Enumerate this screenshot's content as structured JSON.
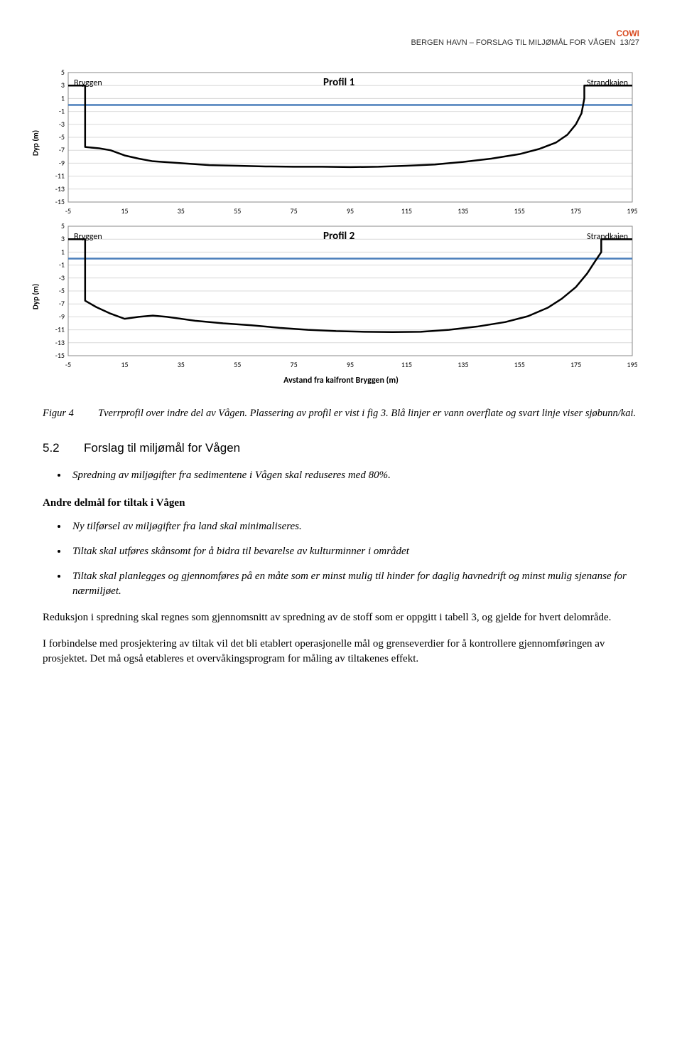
{
  "header": {
    "brand": "COWI",
    "running": "BERGEN HAVN – FORSLAG TIL MILJØMÅL FOR VÅGEN",
    "page": "13/27"
  },
  "chart1": {
    "type": "line-profile",
    "title": "Profil 1",
    "left_label": "Bryggen",
    "right_label": "Strandkaien",
    "yaxis_label": "Dyp (m)",
    "ylim": [
      -15,
      5
    ],
    "yticks": [
      5,
      3,
      1,
      -1,
      -3,
      -5,
      -7,
      -9,
      -11,
      -13,
      -15
    ],
    "xlim": [
      -5,
      195
    ],
    "xticks": [
      -5,
      15,
      35,
      55,
      75,
      95,
      115,
      135,
      155,
      175,
      195
    ],
    "grid_color": "#d9d9d9",
    "axis_color": "#888888",
    "background": "#ffffff",
    "water_line_color": "#4a7ebb",
    "water_line_y": 0,
    "profile_color": "#000000",
    "profile_width": 2.5,
    "title_fontsize": 15,
    "label_fontsize": 11,
    "tick_fontsize": 10,
    "profile_points": [
      [
        -5,
        3
      ],
      [
        1,
        3
      ],
      [
        1,
        -6.5
      ],
      [
        6,
        -6.7
      ],
      [
        10,
        -7.0
      ],
      [
        15,
        -7.8
      ],
      [
        20,
        -8.3
      ],
      [
        25,
        -8.7
      ],
      [
        35,
        -9.0
      ],
      [
        45,
        -9.3
      ],
      [
        55,
        -9.4
      ],
      [
        65,
        -9.5
      ],
      [
        75,
        -9.55
      ],
      [
        85,
        -9.55
      ],
      [
        95,
        -9.6
      ],
      [
        105,
        -9.55
      ],
      [
        115,
        -9.4
      ],
      [
        125,
        -9.2
      ],
      [
        135,
        -8.8
      ],
      [
        145,
        -8.3
      ],
      [
        155,
        -7.6
      ],
      [
        162,
        -6.8
      ],
      [
        168,
        -5.8
      ],
      [
        172,
        -4.6
      ],
      [
        175,
        -3.0
      ],
      [
        177,
        -1.3
      ],
      [
        178,
        1.0
      ],
      [
        178,
        3
      ],
      [
        195,
        3
      ]
    ]
  },
  "chart2": {
    "type": "line-profile",
    "title": "Profil 2",
    "left_label": "Bryggen",
    "right_label": "Strandkaien",
    "yaxis_label": "Dyp (m)",
    "ylim": [
      -15,
      5
    ],
    "yticks": [
      5,
      3,
      1,
      -1,
      -3,
      -5,
      -7,
      -9,
      -11,
      -13,
      -15
    ],
    "xlim": [
      -5,
      195
    ],
    "xticks": [
      -5,
      15,
      35,
      55,
      75,
      95,
      115,
      135,
      155,
      175,
      195
    ],
    "xaxis_label": "Avstand fra kaifront Bryggen (m)",
    "grid_color": "#d9d9d9",
    "axis_color": "#888888",
    "background": "#ffffff",
    "water_line_color": "#4a7ebb",
    "water_line_y": 0,
    "profile_color": "#000000",
    "profile_width": 2.5,
    "title_fontsize": 15,
    "label_fontsize": 11,
    "tick_fontsize": 10,
    "profile_points": [
      [
        -5,
        3
      ],
      [
        1,
        3
      ],
      [
        1,
        -6.5
      ],
      [
        5,
        -7.5
      ],
      [
        10,
        -8.5
      ],
      [
        15,
        -9.3
      ],
      [
        20,
        -9.0
      ],
      [
        25,
        -8.8
      ],
      [
        30,
        -9.0
      ],
      [
        40,
        -9.6
      ],
      [
        50,
        -10.0
      ],
      [
        60,
        -10.3
      ],
      [
        70,
        -10.7
      ],
      [
        80,
        -11.0
      ],
      [
        90,
        -11.2
      ],
      [
        100,
        -11.3
      ],
      [
        110,
        -11.35
      ],
      [
        120,
        -11.3
      ],
      [
        130,
        -11.0
      ],
      [
        140,
        -10.5
      ],
      [
        150,
        -9.8
      ],
      [
        158,
        -8.9
      ],
      [
        165,
        -7.6
      ],
      [
        170,
        -6.2
      ],
      [
        175,
        -4.4
      ],
      [
        179,
        -2.3
      ],
      [
        182,
        -0.3
      ],
      [
        184,
        1.0
      ],
      [
        184,
        3
      ],
      [
        195,
        3
      ]
    ]
  },
  "caption": {
    "label": "Figur 4",
    "text": "Tverrprofil over indre del av Vågen. Plassering av profil er vist i fig 3. Blå linjer er vann overflate og svart linje viser sjøbunn/kai."
  },
  "section": {
    "num": "5.2",
    "title": "Forslag til miljømål for Vågen"
  },
  "main_bullets": [
    "Spredning av miljøgifter fra sedimentene i Vågen skal reduseres med 80%."
  ],
  "subheading": "Andre delmål for tiltak i Vågen",
  "sub_bullets": [
    "Ny tilførsel av miljøgifter fra land skal minimaliseres.",
    "Tiltak skal utføres skånsomt for å bidra til bevarelse av kulturminner i området",
    "Tiltak skal planlegges og gjennomføres på en måte som er minst mulig til hinder for daglig havnedrift og minst mulig sjenanse for nærmiljøet."
  ],
  "paragraphs": [
    "Reduksjon i spredning skal regnes som gjennomsnitt av spredning av de stoff som er oppgitt i tabell 3, og gjelde for hvert delområde.",
    "I forbindelse med prosjektering av tiltak vil det bli etablert operasjonelle mål og grenseverdier for å kontrollere gjennomføringen av prosjektet. Det må også etableres et overvåkingsprogram for måling av tiltakenes effekt."
  ]
}
